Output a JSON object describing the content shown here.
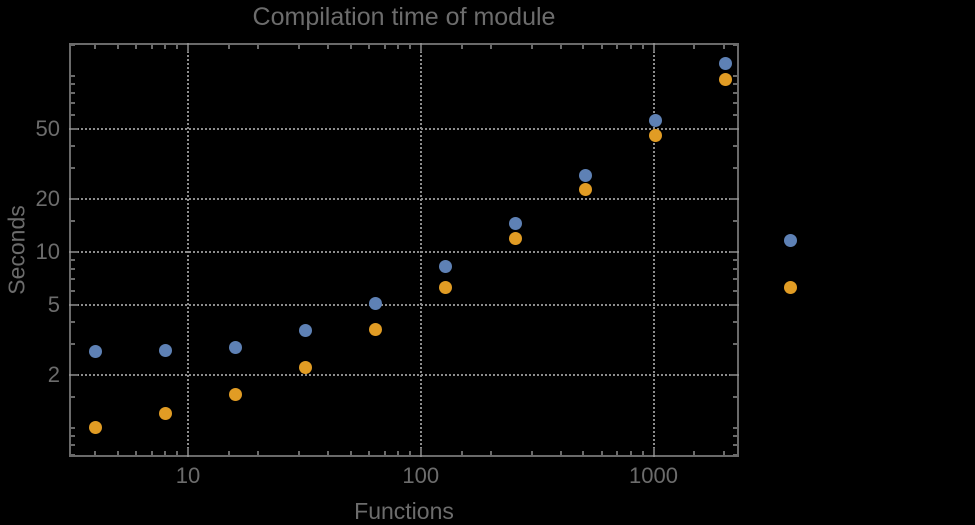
{
  "title": "Compilation time of module",
  "colors": {
    "background": "#000000",
    "frame": "#6a6a6a",
    "grid": "#8c8c8c",
    "text": "#6c6c6c",
    "series1": "#5e81b5",
    "series2": "#e19c24"
  },
  "chart_data": {
    "type": "scatter",
    "title": "Compilation time of module",
    "xlabel": "Functions",
    "ylabel": "Seconds",
    "x_scale": "log",
    "y_scale": "log",
    "grid": "dotted",
    "legend_position": "none",
    "xlim": [
      3.08,
      2330
    ],
    "ylim": [
      0.68,
      154
    ],
    "x_ticks": [
      10,
      100,
      1000
    ],
    "x_tick_labels": [
      "10",
      "100",
      "1000"
    ],
    "y_ticks": [
      2,
      5,
      10,
      20,
      50
    ],
    "y_tick_labels": [
      "2",
      "5",
      "10",
      "20",
      "50"
    ],
    "x": [
      4,
      8,
      16,
      32,
      64,
      128,
      256,
      512,
      1024,
      2048
    ],
    "series": [
      {
        "name": "series-1-blue",
        "color": "#5e81b5",
        "values": [
          2.7,
          2.75,
          2.85,
          3.55,
          5.1,
          8.2,
          14.4,
          27,
          55.5,
          117
        ]
      },
      {
        "name": "series-2-orange",
        "color": "#e19c24",
        "values": [
          1.0,
          1.2,
          1.55,
          2.2,
          3.6,
          6.3,
          11.9,
          22.5,
          46,
          96
        ]
      }
    ],
    "outside_markers": [
      {
        "series": "series-1-blue",
        "color": "#5e81b5",
        "x": 3870,
        "y": 11.6
      },
      {
        "series": "series-2-orange",
        "color": "#e19c24",
        "x": 3870,
        "y": 6.3
      }
    ]
  }
}
